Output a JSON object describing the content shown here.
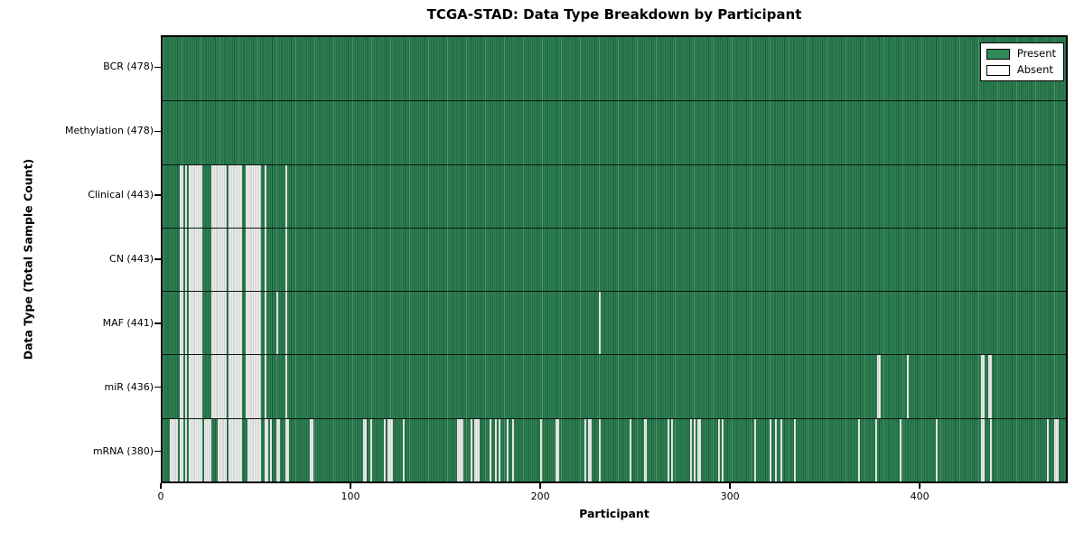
{
  "chart_data": {
    "type": "heatmap",
    "title": "TCGA-STAD: Data Type Breakdown by Participant",
    "xlabel": "Participant",
    "ylabel": "Data Type (Total Sample Count)",
    "x_min": 0,
    "x_max": 478,
    "x_ticks": [
      "0",
      "100",
      "200",
      "300",
      "400"
    ],
    "x_tick_values": [
      0,
      100,
      200,
      300,
      400
    ],
    "grid": false,
    "legend_position": "upper right",
    "legend": [
      {
        "label": "Present",
        "color": "#2e8b57"
      },
      {
        "label": "Absent",
        "color": "#ffffff"
      }
    ],
    "colors": {
      "present_fill": "#2d8152",
      "present_edge": "#1d5c3c",
      "absent_fill": "#ededed",
      "absent_edge": "#c0c0c0",
      "frame": "#000000"
    },
    "rows": [
      {
        "name": "BCR",
        "total": 478,
        "label": "BCR (478)",
        "absent_ranges": []
      },
      {
        "name": "Methylation",
        "total": 478,
        "label": "Methylation (478)",
        "absent_ranges": []
      },
      {
        "name": "Clinical",
        "total": 443,
        "label": "Clinical (443)",
        "absent_ranges": [
          [
            9,
            10
          ],
          [
            12,
            12
          ],
          [
            14,
            20
          ],
          [
            26,
            33
          ],
          [
            35,
            41
          ],
          [
            44,
            51
          ],
          [
            54,
            54
          ],
          [
            65,
            65
          ]
        ]
      },
      {
        "name": "CN",
        "total": 443,
        "label": "CN (443)",
        "absent_ranges": [
          [
            9,
            10
          ],
          [
            12,
            12
          ],
          [
            14,
            20
          ],
          [
            26,
            33
          ],
          [
            35,
            41
          ],
          [
            44,
            51
          ],
          [
            54,
            54
          ],
          [
            65,
            65
          ]
        ]
      },
      {
        "name": "MAF",
        "total": 441,
        "label": "MAF (441)",
        "absent_ranges": [
          [
            9,
            10
          ],
          [
            12,
            12
          ],
          [
            14,
            20
          ],
          [
            26,
            33
          ],
          [
            35,
            41
          ],
          [
            44,
            51
          ],
          [
            54,
            54
          ],
          [
            60,
            60
          ],
          [
            65,
            65
          ],
          [
            231,
            231
          ]
        ]
      },
      {
        "name": "miR",
        "total": 436,
        "label": "miR (436)",
        "absent_ranges": [
          [
            9,
            10
          ],
          [
            12,
            12
          ],
          [
            14,
            20
          ],
          [
            26,
            33
          ],
          [
            35,
            41
          ],
          [
            44,
            51
          ],
          [
            54,
            54
          ],
          [
            65,
            65
          ],
          [
            378,
            379
          ],
          [
            394,
            394
          ],
          [
            433,
            434
          ],
          [
            437,
            438
          ]
        ]
      },
      {
        "name": "mRNA",
        "total": 380,
        "label": "mRNA (380)",
        "absent_ranges": [
          [
            4,
            7
          ],
          [
            9,
            10
          ],
          [
            12,
            12
          ],
          [
            14,
            20
          ],
          [
            22,
            25
          ],
          [
            29,
            33
          ],
          [
            35,
            41
          ],
          [
            45,
            51
          ],
          [
            54,
            55
          ],
          [
            57,
            57
          ],
          [
            60,
            61
          ],
          [
            65,
            66
          ],
          [
            78,
            79
          ],
          [
            106,
            107
          ],
          [
            110,
            110
          ],
          [
            117,
            117
          ],
          [
            119,
            121
          ],
          [
            127,
            127
          ],
          [
            156,
            158
          ],
          [
            163,
            163
          ],
          [
            165,
            167
          ],
          [
            173,
            173
          ],
          [
            176,
            176
          ],
          [
            178,
            178
          ],
          [
            182,
            182
          ],
          [
            185,
            185
          ],
          [
            200,
            200
          ],
          [
            208,
            209
          ],
          [
            223,
            223
          ],
          [
            225,
            226
          ],
          [
            231,
            231
          ],
          [
            247,
            247
          ],
          [
            255,
            255
          ],
          [
            267,
            267
          ],
          [
            269,
            269
          ],
          [
            279,
            279
          ],
          [
            281,
            281
          ],
          [
            283,
            284
          ],
          [
            294,
            294
          ],
          [
            296,
            296
          ],
          [
            313,
            313
          ],
          [
            321,
            321
          ],
          [
            324,
            324
          ],
          [
            327,
            327
          ],
          [
            334,
            334
          ],
          [
            368,
            368
          ],
          [
            377,
            377
          ],
          [
            390,
            390
          ],
          [
            409,
            409
          ],
          [
            433,
            434
          ],
          [
            438,
            438
          ],
          [
            468,
            468
          ],
          [
            472,
            473
          ]
        ]
      }
    ]
  }
}
